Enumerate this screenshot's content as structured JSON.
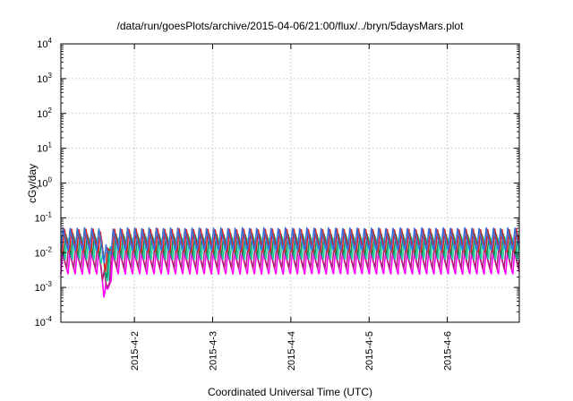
{
  "chart_data": {
    "type": "line",
    "title": "/data/run/goesPlots/archive/2015-04-06/21:00/flux/../bryn/5daysMars.plot",
    "xlabel": "Coordinated Universal Time (UTC)",
    "ylabel": "cGy/day",
    "yscale": "log",
    "ylim": [
      0.0001,
      10000
    ],
    "xlim_days": [
      1.06,
      6.92
    ],
    "grid": true,
    "x_ticks": [
      {
        "pos": 2,
        "label": "2015-4-2"
      },
      {
        "pos": 3,
        "label": "2015-4-3"
      },
      {
        "pos": 4,
        "label": "2015-4-4"
      },
      {
        "pos": 5,
        "label": "2015-4-5"
      },
      {
        "pos": 6,
        "label": "2015-4-6"
      }
    ],
    "y_ticks": [
      {
        "value": 0.0001,
        "base": "10",
        "exp": "-4"
      },
      {
        "value": 0.001,
        "base": "10",
        "exp": "-3"
      },
      {
        "value": 0.01,
        "base": "10",
        "exp": "-2"
      },
      {
        "value": 0.1,
        "base": "10",
        "exp": "-1"
      },
      {
        "value": 1,
        "base": "10",
        "exp": "0"
      },
      {
        "value": 10,
        "base": "10",
        "exp": "1"
      },
      {
        "value": 100,
        "base": "10",
        "exp": "2"
      },
      {
        "value": 1000,
        "base": "10",
        "exp": "3"
      },
      {
        "value": 10000,
        "base": "10",
        "exp": "4"
      }
    ],
    "sawtooth": {
      "period_days": 0.0917,
      "dip": {
        "center_day": 1.64,
        "depth_decades": 0.9
      }
    },
    "series": [
      {
        "color": "#ff00ff",
        "peak": 0.012,
        "trough": 0.0024
      },
      {
        "color": "#b0207a",
        "peak": 0.017,
        "trough": 0.0035
      },
      {
        "color": "#1fd3a8",
        "peak": 0.028,
        "trough": 0.0065
      },
      {
        "color": "#0a8f5c",
        "peak": 0.035,
        "trough": 0.0085
      },
      {
        "color": "#e02020",
        "peak": 0.048,
        "trough": 0.0105
      },
      {
        "color": "#3a6fd8",
        "peak": 0.052,
        "trough": 0.0115
      }
    ]
  }
}
